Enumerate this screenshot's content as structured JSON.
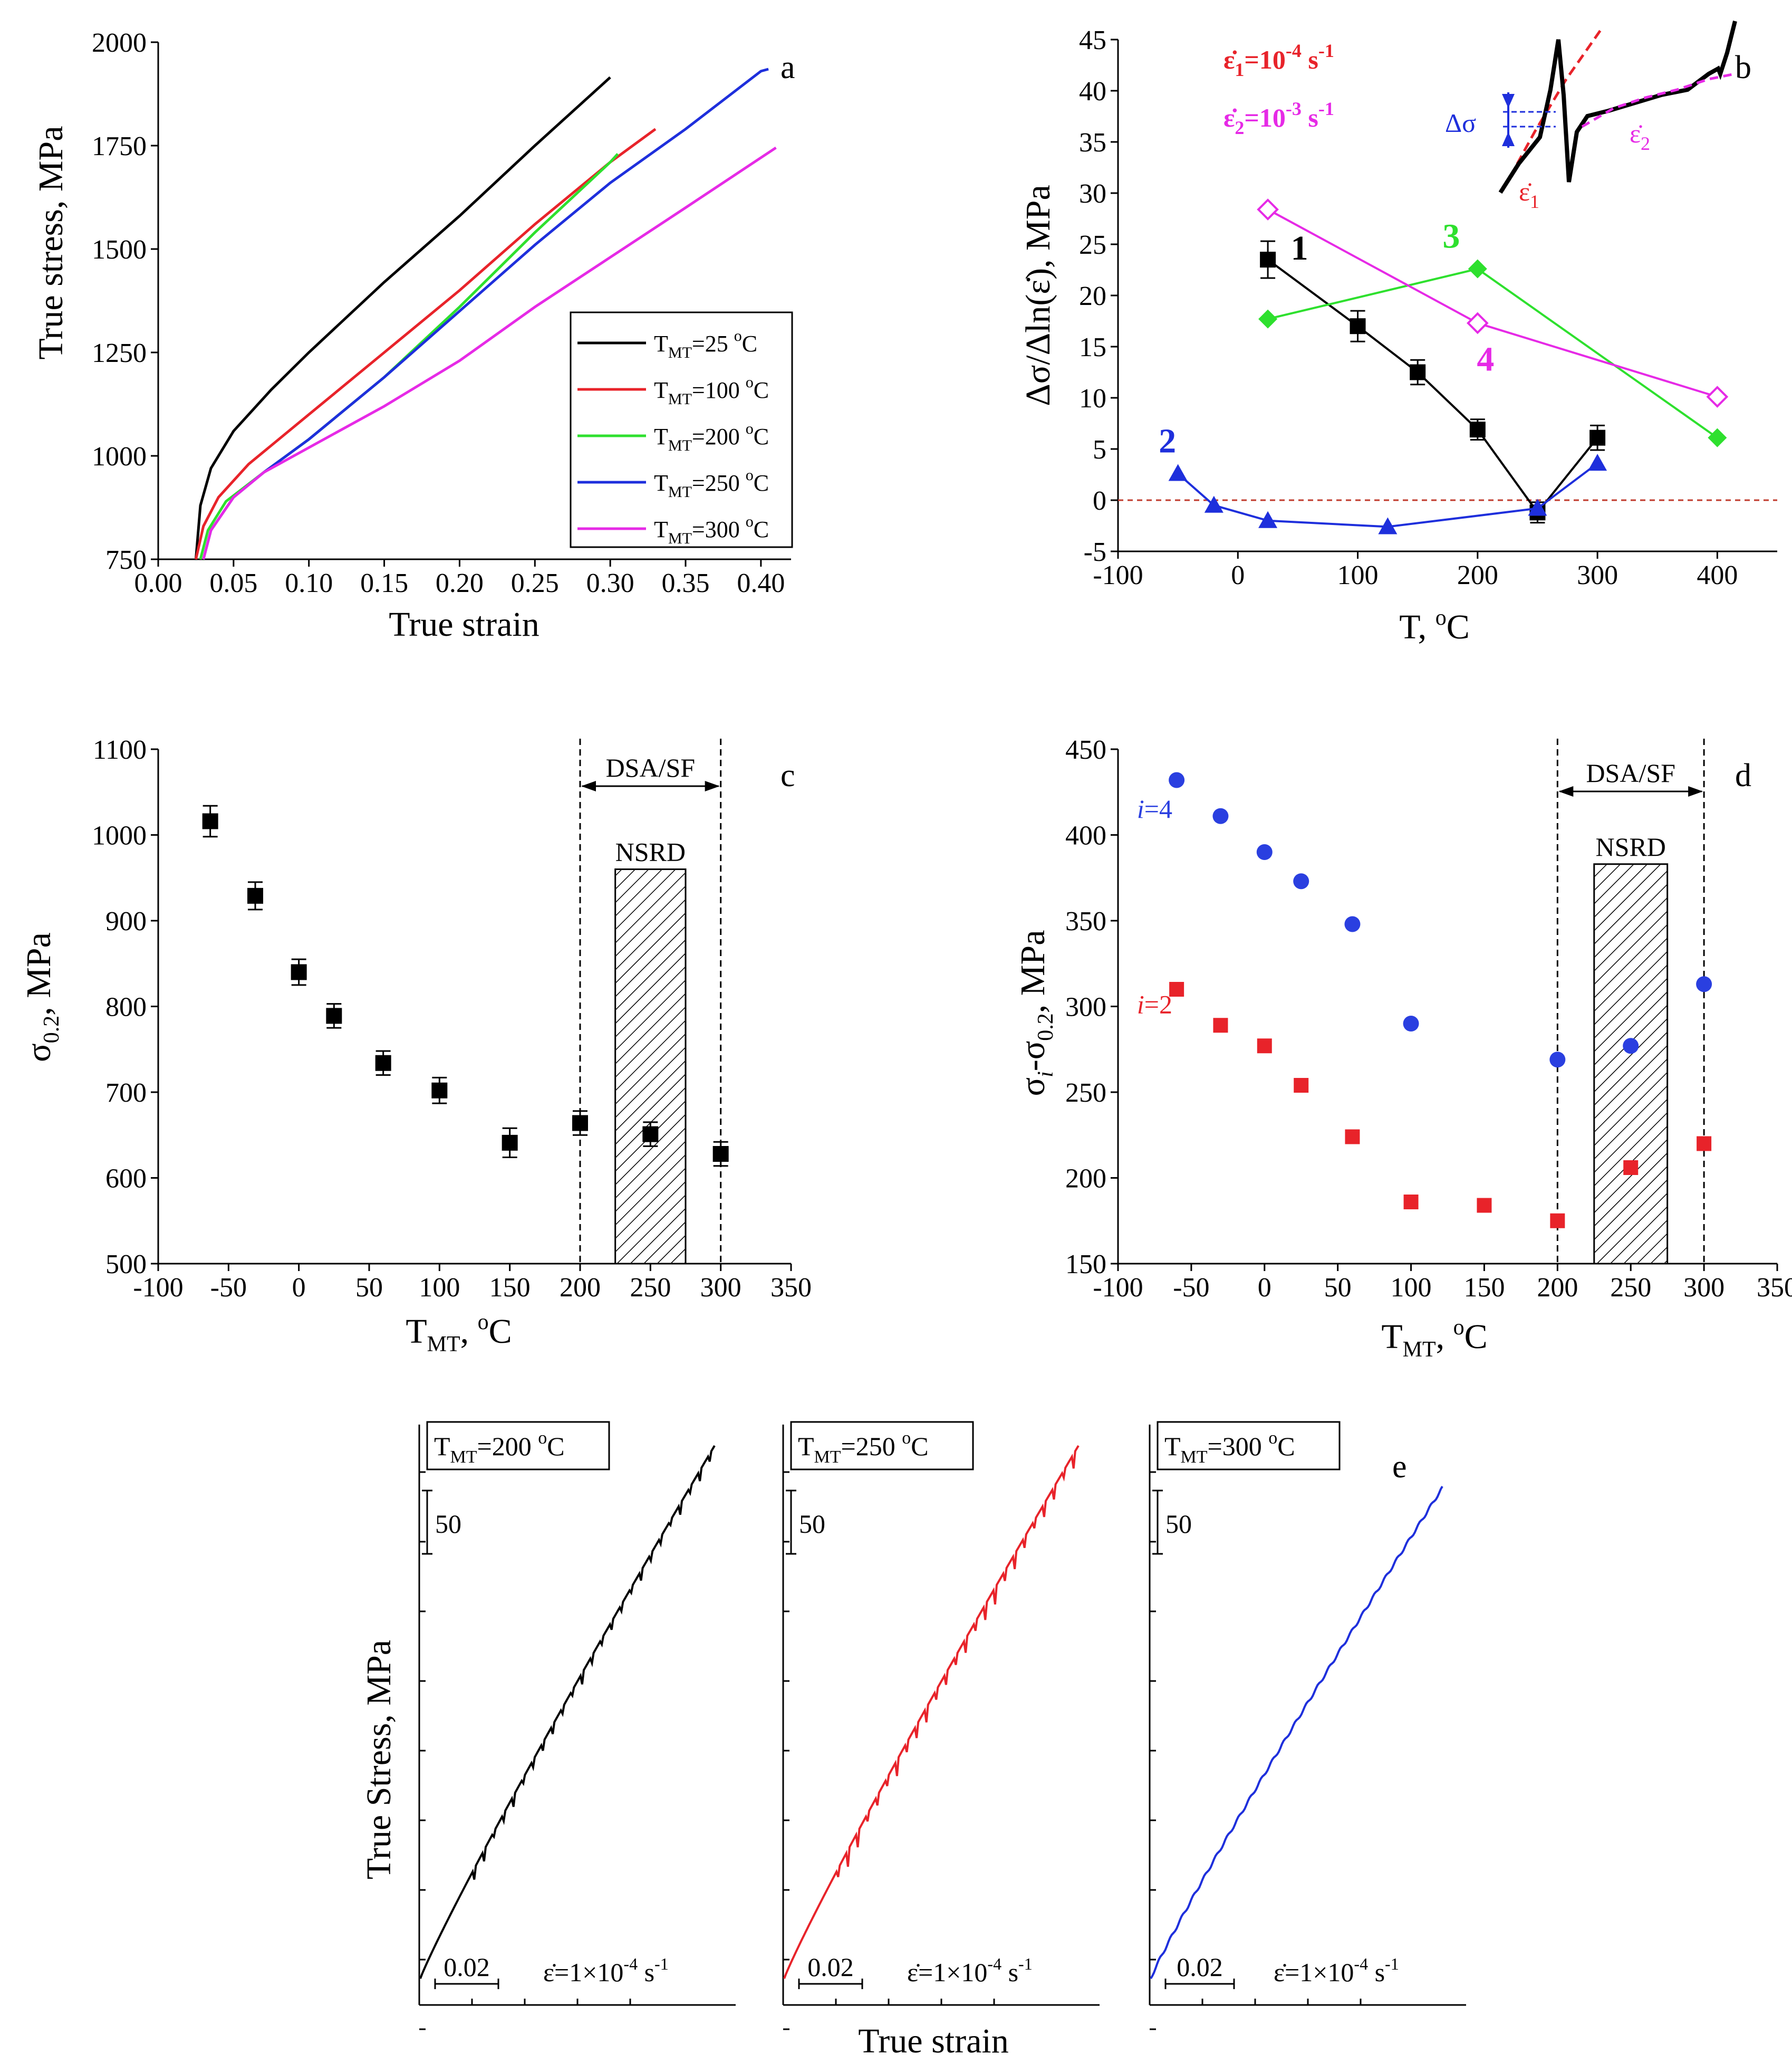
{
  "figure": {
    "colors": {
      "black": "#000000",
      "red": "#e8232a",
      "green": "#2ee02e",
      "blue": "#1e2fdc",
      "magenta": "#e62ae6",
      "blue_dot": "#2a3fe0",
      "red_sq": "#e8232a",
      "ref_line": "#c0392b"
    }
  },
  "chart_data": [
    {
      "id": "a",
      "type": "line",
      "panel_letter": "a",
      "xlabel": "True strain",
      "ylabel": "True stress, MPa",
      "xlim": [
        0.0,
        0.42
      ],
      "ylim": [
        750,
        2000
      ],
      "xticks": [
        "0.00",
        "0.05",
        "0.10",
        "0.15",
        "0.20",
        "0.25",
        "0.30",
        "0.35",
        "0.40"
      ],
      "xtick_values": [
        0.0,
        0.05,
        0.1,
        0.15,
        0.2,
        0.25,
        0.3,
        0.35,
        0.4
      ],
      "yticks": [
        "750",
        "1000",
        "1250",
        "1500",
        "1750",
        "2000"
      ],
      "ytick_values": [
        750,
        1000,
        1250,
        1500,
        1750,
        2000
      ],
      "legend_position": "bottom-right",
      "series": [
        {
          "name": "T",
          "sub": "MT",
          "val": "=25 ",
          "sup": "o",
          "unit": "C",
          "color": "#000000",
          "x": [
            0.025,
            0.028,
            0.035,
            0.05,
            0.075,
            0.1,
            0.15,
            0.2,
            0.25,
            0.3
          ],
          "y": [
            750,
            880,
            970,
            1060,
            1160,
            1250,
            1420,
            1580,
            1750,
            1915
          ]
        },
        {
          "name": "T",
          "sub": "MT",
          "val": "=100 ",
          "sup": "o",
          "unit": "C",
          "color": "#e8232a",
          "x": [
            0.025,
            0.03,
            0.04,
            0.06,
            0.1,
            0.15,
            0.2,
            0.25,
            0.3,
            0.33
          ],
          "y": [
            750,
            830,
            900,
            980,
            1100,
            1250,
            1400,
            1560,
            1710,
            1790
          ]
        },
        {
          "name": "T",
          "sub": "MT",
          "val": "=200 ",
          "sup": "o",
          "unit": "C",
          "color": "#2ee02e",
          "x": [
            0.028,
            0.033,
            0.045,
            0.07,
            0.1,
            0.15,
            0.2,
            0.25,
            0.3,
            0.305
          ],
          "y": [
            750,
            820,
            890,
            960,
            1040,
            1190,
            1360,
            1540,
            1710,
            1730
          ]
        },
        {
          "name": "T",
          "sub": "MT",
          "val": "=250 ",
          "sup": "o",
          "unit": "C",
          "color": "#1e2fdc",
          "x": [
            0.03,
            0.035,
            0.05,
            0.07,
            0.1,
            0.15,
            0.2,
            0.25,
            0.3,
            0.35,
            0.4,
            0.405
          ],
          "y": [
            750,
            820,
            900,
            960,
            1040,
            1190,
            1350,
            1510,
            1660,
            1790,
            1930,
            1935
          ]
        },
        {
          "name": "T",
          "sub": "MT",
          "val": "=300 ",
          "sup": "o",
          "unit": "C",
          "color": "#e62ae6",
          "x": [
            0.03,
            0.035,
            0.05,
            0.07,
            0.1,
            0.15,
            0.2,
            0.25,
            0.3,
            0.35,
            0.41
          ],
          "y": [
            750,
            820,
            900,
            960,
            1020,
            1120,
            1230,
            1360,
            1480,
            1600,
            1745
          ]
        }
      ]
    },
    {
      "id": "b",
      "type": "line",
      "panel_letter": "b",
      "xlabel": "T, ",
      "xlabel_sup": "o",
      "xlabel_unit": "C",
      "ylabel": "Δσ/Δln(ε̇), MPa",
      "xlim": [
        -100,
        450
      ],
      "ylim": [
        -5,
        45
      ],
      "xticks": [
        "-100",
        "0",
        "100",
        "200",
        "300",
        "400"
      ],
      "xtick_values": [
        -100,
        0,
        100,
        200,
        300,
        400
      ],
      "yticks": [
        "-5",
        "0",
        "5",
        "10",
        "15",
        "20",
        "25",
        "30",
        "35",
        "40",
        "45"
      ],
      "ytick_values": [
        -5,
        0,
        5,
        10,
        15,
        20,
        25,
        30,
        35,
        40,
        45
      ],
      "reference_line_y": 0,
      "series": [
        {
          "name": "1",
          "color": "#000000",
          "marker": "square",
          "x": [
            25,
            100,
            150,
            200,
            250,
            300
          ],
          "y": [
            23.5,
            17,
            12.5,
            6.9,
            -1.2,
            6.1
          ],
          "err": [
            1.8,
            1.5,
            1.2,
            1.0,
            1.0,
            1.2
          ]
        },
        {
          "name": "2",
          "color": "#1e2fdc",
          "marker": "triangle",
          "x": [
            -50,
            -20,
            25,
            125,
            250,
            300
          ],
          "y": [
            2.6,
            -0.5,
            -2,
            -2.6,
            -0.8,
            3.6
          ]
        },
        {
          "name": "3",
          "color": "#2ee02e",
          "marker": "diamond",
          "x": [
            25,
            200,
            400
          ],
          "y": [
            17.7,
            22.6,
            6.1
          ]
        },
        {
          "name": "4",
          "color": "#e62ae6",
          "marker": "diamond-open",
          "x": [
            25,
            200,
            400
          ],
          "y": [
            28.4,
            17.3,
            10.1
          ]
        }
      ],
      "inset": {
        "rate1": "=10",
        "rate1_exp": "-4",
        "rate2": "=10",
        "rate2_exp": "-3",
        "unit": " s",
        "unit_exp": "-1",
        "delta": "Δσ",
        "e1": "ε̇",
        "e1_sub": "1",
        "e2": "ε̇",
        "e2_sub": "2",
        "e_sym": "ε̇",
        "sub1": "1",
        "sub2": "2"
      }
    },
    {
      "id": "c",
      "type": "scatter",
      "panel_letter": "c",
      "xlabel": "T",
      "xlabel_sub": "MT",
      "xlabel_rest": ", ",
      "xlabel_sup": "o",
      "xlabel_unit": "C",
      "ylabel": "σ",
      "ylabel_sub": "0.2",
      "ylabel_rest": ", MPa",
      "xlim": [
        -100,
        350
      ],
      "ylim": [
        500,
        1100
      ],
      "xticks": [
        "-100",
        "-50",
        "0",
        "50",
        "100",
        "150",
        "200",
        "250",
        "300",
        "350"
      ],
      "xtick_values": [
        -100,
        -50,
        0,
        50,
        100,
        150,
        200,
        250,
        300,
        350
      ],
      "yticks": [
        "500",
        "600",
        "700",
        "800",
        "900",
        "1000",
        "1100"
      ],
      "ytick_values": [
        500,
        600,
        700,
        800,
        900,
        1000,
        1100
      ],
      "series": [
        {
          "name": "σ0.2",
          "color": "#000000",
          "x": [
            -63,
            -31,
            0,
            25,
            60,
            100,
            150,
            200,
            250,
            300
          ],
          "y": [
            1016,
            929,
            840,
            789,
            734,
            702,
            641,
            664,
            651,
            628
          ],
          "err": [
            18,
            16,
            15,
            14,
            14,
            15,
            17,
            14,
            14,
            14
          ]
        }
      ],
      "region_label": "DSA/SF",
      "region_x": [
        200,
        300
      ],
      "hatch_label": "NSRD",
      "hatch_x": [
        225,
        275
      ],
      "hatch_ytop": 960
    },
    {
      "id": "d",
      "type": "scatter",
      "panel_letter": "d",
      "xlabel": "T",
      "xlabel_sub": "MT",
      "xlabel_rest": ", ",
      "xlabel_sup": "o",
      "xlabel_unit": "C",
      "ylabel": "σ",
      "ylabel_sub1": "i",
      "ylabel_mid": "-σ",
      "ylabel_sub2": "0.2",
      "ylabel_rest": ", MPa",
      "xlim": [
        -100,
        350
      ],
      "ylim": [
        150,
        450
      ],
      "xticks": [
        "-100",
        "-50",
        "0",
        "50",
        "100",
        "150",
        "200",
        "250",
        "300",
        "350"
      ],
      "xtick_values": [
        -100,
        -50,
        0,
        50,
        100,
        150,
        200,
        250,
        300,
        350
      ],
      "yticks": [
        "150",
        "200",
        "250",
        "300",
        "350",
        "400",
        "450"
      ],
      "ytick_values": [
        150,
        200,
        250,
        300,
        350,
        400,
        450
      ],
      "series": [
        {
          "name_i": "i",
          "name_rest": "=4",
          "color": "#2a3fe0",
          "marker": "circle",
          "x": [
            -60,
            -30,
            0,
            25,
            60,
            100,
            200,
            250,
            300
          ],
          "y": [
            432,
            411,
            390,
            373,
            348,
            290,
            269,
            277,
            313
          ]
        },
        {
          "name_i": "i",
          "name_rest": "=2",
          "color": "#e8232a",
          "marker": "square",
          "x": [
            -60,
            -30,
            0,
            25,
            60,
            100,
            150,
            200,
            250,
            300
          ],
          "y": [
            310,
            289,
            277,
            254,
            224,
            186,
            184,
            175,
            206,
            220
          ]
        }
      ],
      "region_label": "DSA/SF",
      "region_x": [
        200,
        300
      ],
      "hatch_label": "NSRD",
      "hatch_x": [
        225,
        275
      ],
      "hatch_ytop": 383
    },
    {
      "id": "e",
      "type": "line",
      "panel_letter": "e",
      "ylabel": "True Stress, MPa",
      "xlabel": "True strain",
      "stress_scalebar": "50",
      "strain_scalebar": "0.02",
      "rate": "=1×10",
      "rate_exp": "-4",
      "rate_unit": " s",
      "rate_unit_exp": "-1",
      "rate_sym": "ε̇",
      "panels": [
        {
          "title": "T",
          "sub": "MT",
          "val": "=200 ",
          "sup": "o",
          "unit": "C",
          "color": "#000000",
          "serration": "moderate"
        },
        {
          "title": "T",
          "sub": "MT",
          "val": "=250 ",
          "sup": "o",
          "unit": "C",
          "color": "#e8232a",
          "serration": "strong"
        },
        {
          "title": "T",
          "sub": "MT",
          "val": "=300 ",
          "sup": "o",
          "unit": "C",
          "color": "#1e2fdc",
          "serration": "none"
        }
      ]
    }
  ]
}
